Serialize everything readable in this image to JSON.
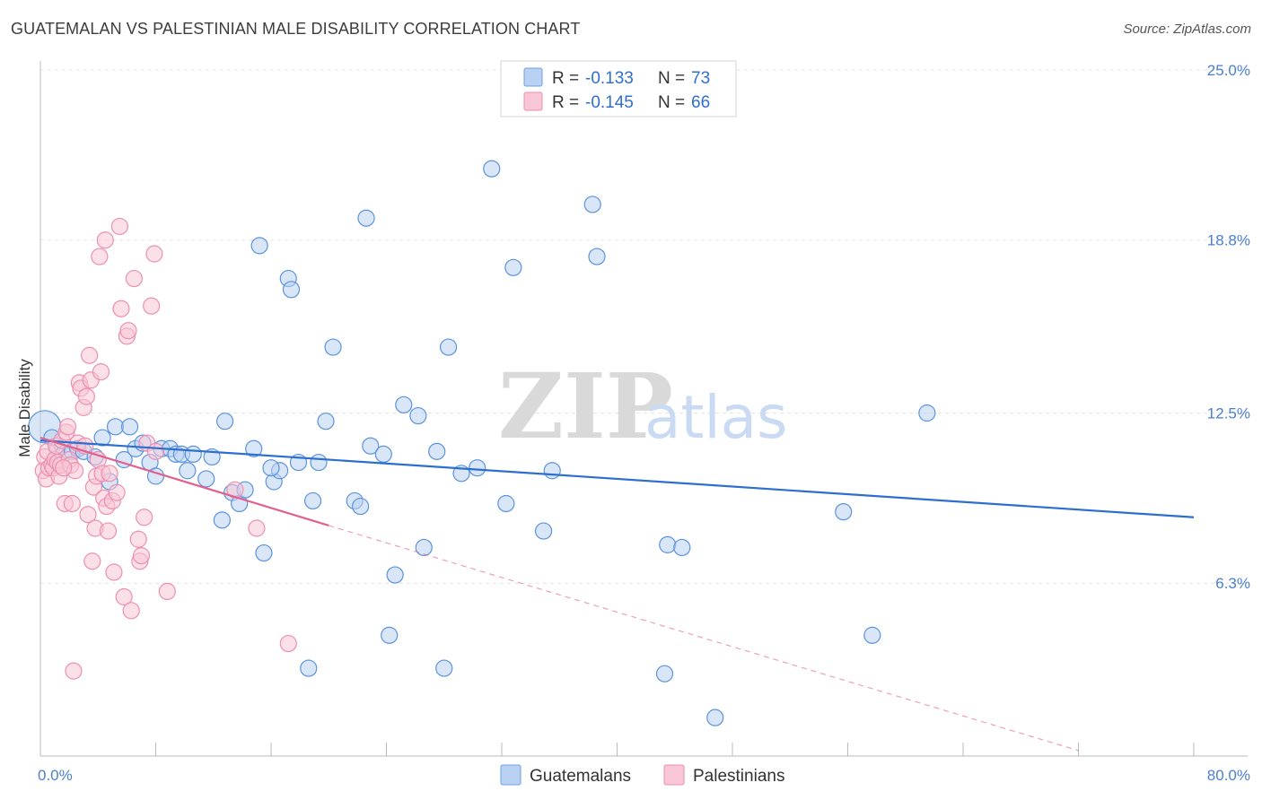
{
  "title": "GUATEMALAN VS PALESTINIAN MALE DISABILITY CORRELATION CHART",
  "source": "Source: ZipAtlas.com",
  "watermark": {
    "zip": "ZIP",
    "atlas": "atlas"
  },
  "legend_top": [
    {
      "r_label": "R =",
      "r_value": "-0.133",
      "n_label": "N =",
      "n_value": "73",
      "color": "#6fa0e3",
      "fill": "#b9d1f3"
    },
    {
      "r_label": "R =",
      "r_value": "-0.145",
      "n_label": "N =",
      "n_value": "66",
      "color": "#ec8fb0",
      "fill": "#f8c6d6"
    }
  ],
  "chart_data": {
    "type": "scatter",
    "title": "GUATEMALAN VS PALESTINIAN MALE DISABILITY CORRELATION CHART",
    "xlabel": "",
    "ylabel": "Male Disability",
    "xlim": [
      0,
      80
    ],
    "ylim": [
      0,
      25
    ],
    "x_tick_labels": [
      "0.0%",
      "80.0%"
    ],
    "y_ticks": [
      6.3,
      12.5,
      18.8,
      25.0
    ],
    "y_tick_labels": [
      "6.3%",
      "12.5%",
      "18.8%",
      "25.0%"
    ],
    "grid": true,
    "legend_position": "bottom-center",
    "series": [
      {
        "name": "Guatemalans",
        "color": "#5b93dc",
        "fill": "#b9d1f3",
        "trend": {
          "x": [
            0,
            80
          ],
          "y": [
            11.5,
            8.7
          ],
          "color": "#2c6fcf"
        },
        "points": [
          [
            0.3,
            12.0
          ],
          [
            0.8,
            11.6
          ],
          [
            1.2,
            11.2
          ],
          [
            1.6,
            11.0
          ],
          [
            2.2,
            11.1
          ],
          [
            2.6,
            11.2
          ],
          [
            3.0,
            11.1
          ],
          [
            3.8,
            10.9
          ],
          [
            4.3,
            11.6
          ],
          [
            4.8,
            10.0
          ],
          [
            5.2,
            12.0
          ],
          [
            5.8,
            10.8
          ],
          [
            6.2,
            12.0
          ],
          [
            6.6,
            11.2
          ],
          [
            7.1,
            11.4
          ],
          [
            7.6,
            10.7
          ],
          [
            8.0,
            10.2
          ],
          [
            8.4,
            11.2
          ],
          [
            9.0,
            11.2
          ],
          [
            9.4,
            11.0
          ],
          [
            9.8,
            11.0
          ],
          [
            10.2,
            10.4
          ],
          [
            10.6,
            11.0
          ],
          [
            11.5,
            10.1
          ],
          [
            11.9,
            10.9
          ],
          [
            12.6,
            8.6
          ],
          [
            12.8,
            12.2
          ],
          [
            13.3,
            9.6
          ],
          [
            13.8,
            9.2
          ],
          [
            14.2,
            9.7
          ],
          [
            14.8,
            11.2
          ],
          [
            15.5,
            7.4
          ],
          [
            15.2,
            18.6
          ],
          [
            16.2,
            10.0
          ],
          [
            16.6,
            10.4
          ],
          [
            17.2,
            17.4
          ],
          [
            17.4,
            17.0
          ],
          [
            17.9,
            10.7
          ],
          [
            18.6,
            3.2
          ],
          [
            18.9,
            9.3
          ],
          [
            19.3,
            10.7
          ],
          [
            19.8,
            12.2
          ],
          [
            20.3,
            14.9
          ],
          [
            21.8,
            9.3
          ],
          [
            22.2,
            9.1
          ],
          [
            22.6,
            19.6
          ],
          [
            22.9,
            11.3
          ],
          [
            23.8,
            11.0
          ],
          [
            24.2,
            4.4
          ],
          [
            24.6,
            6.6
          ],
          [
            25.2,
            12.8
          ],
          [
            26.2,
            12.4
          ],
          [
            26.6,
            7.6
          ],
          [
            27.5,
            11.1
          ],
          [
            28.0,
            3.2
          ],
          [
            28.3,
            14.9
          ],
          [
            29.2,
            10.3
          ],
          [
            30.3,
            10.5
          ],
          [
            31.3,
            21.4
          ],
          [
            32.3,
            9.2
          ],
          [
            32.8,
            17.8
          ],
          [
            34.9,
            8.2
          ],
          [
            35.5,
            10.4
          ],
          [
            38.3,
            20.1
          ],
          [
            38.6,
            18.2
          ],
          [
            43.5,
            7.7
          ],
          [
            43.3,
            3.0
          ],
          [
            46.8,
            1.4
          ],
          [
            55.7,
            8.9
          ],
          [
            57.7,
            4.4
          ],
          [
            61.5,
            12.5
          ],
          [
            44.5,
            7.6
          ],
          [
            16.0,
            10.5
          ]
        ]
      },
      {
        "name": "Palestinians",
        "color": "#ec8fb0",
        "fill": "#f8c6d6",
        "trend": {
          "x": [
            0,
            20
          ],
          "y": [
            11.6,
            8.4
          ],
          "color": "#e0608e"
        },
        "trend_extension": {
          "x": [
            20,
            72
          ],
          "y": [
            8.4,
            0.2
          ]
        },
        "points": [
          [
            0.2,
            10.4
          ],
          [
            0.3,
            10.9
          ],
          [
            0.4,
            10.1
          ],
          [
            0.5,
            11.1
          ],
          [
            0.6,
            10.5
          ],
          [
            0.8,
            10.6
          ],
          [
            0.9,
            10.5
          ],
          [
            1.0,
            10.8
          ],
          [
            1.1,
            11.3
          ],
          [
            1.2,
            10.7
          ],
          [
            1.3,
            10.2
          ],
          [
            1.4,
            10.6
          ],
          [
            1.5,
            11.5
          ],
          [
            1.7,
            9.2
          ],
          [
            1.8,
            11.8
          ],
          [
            1.9,
            12.0
          ],
          [
            2.0,
            10.8
          ],
          [
            2.1,
            10.6
          ],
          [
            2.2,
            9.2
          ],
          [
            2.4,
            10.4
          ],
          [
            2.6,
            11.4
          ],
          [
            2.7,
            13.6
          ],
          [
            2.8,
            13.4
          ],
          [
            3.0,
            12.7
          ],
          [
            3.1,
            11.3
          ],
          [
            3.2,
            13.1
          ],
          [
            3.3,
            8.8
          ],
          [
            3.4,
            14.6
          ],
          [
            3.5,
            13.7
          ],
          [
            3.6,
            7.1
          ],
          [
            3.7,
            9.8
          ],
          [
            3.8,
            8.3
          ],
          [
            3.9,
            10.2
          ],
          [
            4.0,
            10.8
          ],
          [
            4.1,
            18.2
          ],
          [
            4.2,
            14.0
          ],
          [
            4.3,
            10.3
          ],
          [
            4.4,
            9.4
          ],
          [
            4.5,
            18.8
          ],
          [
            4.6,
            9.1
          ],
          [
            4.7,
            8.2
          ],
          [
            4.8,
            10.3
          ],
          [
            5.0,
            9.3
          ],
          [
            5.1,
            6.7
          ],
          [
            5.3,
            9.6
          ],
          [
            5.5,
            19.3
          ],
          [
            5.6,
            16.3
          ],
          [
            5.8,
            5.8
          ],
          [
            6.0,
            15.3
          ],
          [
            6.1,
            15.5
          ],
          [
            6.3,
            5.3
          ],
          [
            6.5,
            17.4
          ],
          [
            6.8,
            7.9
          ],
          [
            6.9,
            7.1
          ],
          [
            7.0,
            7.3
          ],
          [
            7.2,
            8.7
          ],
          [
            7.4,
            11.4
          ],
          [
            7.7,
            16.4
          ],
          [
            7.9,
            18.3
          ],
          [
            8.0,
            11.1
          ],
          [
            8.8,
            6.0
          ],
          [
            13.5,
            9.7
          ],
          [
            15.0,
            8.3
          ],
          [
            17.2,
            4.1
          ],
          [
            2.3,
            3.1
          ],
          [
            1.6,
            10.5
          ]
        ]
      }
    ]
  },
  "bottom_legend": [
    {
      "label": "Guatemalans",
      "color": "#6fa0e3",
      "fill": "#b9d1f3"
    },
    {
      "label": "Palestinians",
      "color": "#ec8fb0",
      "fill": "#f8c6d6"
    }
  ]
}
